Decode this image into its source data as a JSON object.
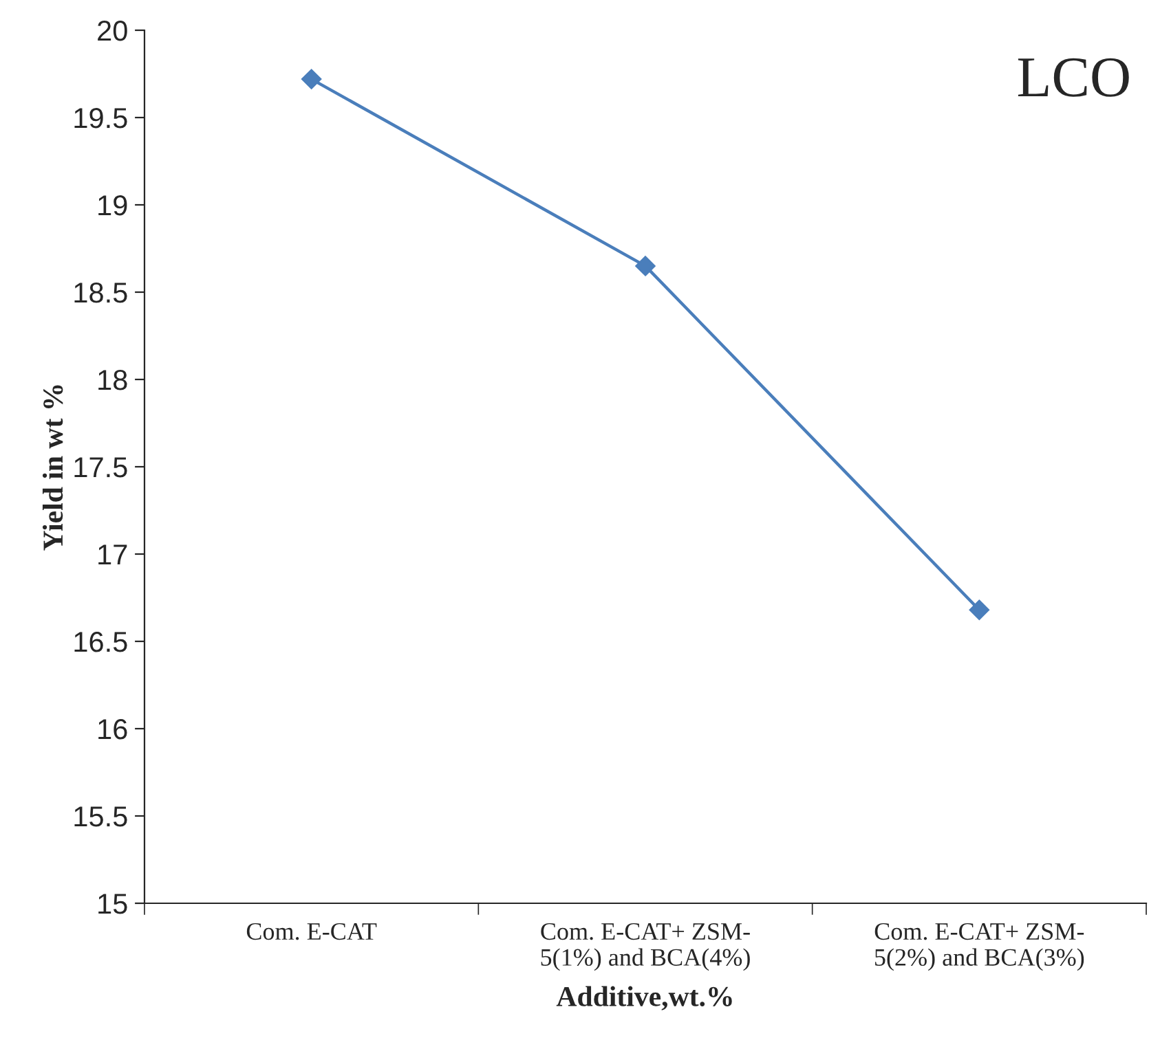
{
  "chart_data": {
    "type": "line",
    "xlabel": "Additive,wt.%",
    "ylabel": "Yield in wt %",
    "categories": [
      "Com. E-CAT",
      "Com. E-CAT+ ZSM-\n5(1%) and BCA(4%)",
      "Com. E-CAT+ ZSM-\n5(2%) and BCA(3%)"
    ],
    "series": [
      {
        "color": "#4a7ebb",
        "values": [
          19.72,
          18.65,
          16.68
        ]
      }
    ],
    "ylim": [
      15,
      20
    ],
    "yticks": [
      15,
      15.5,
      16,
      16.5,
      17,
      17.5,
      18,
      18.5,
      19,
      19.5,
      20
    ],
    "annotations": [
      "LCO"
    ],
    "marker": "diamond",
    "line_style": "solid",
    "grid": false,
    "legend": false
  }
}
